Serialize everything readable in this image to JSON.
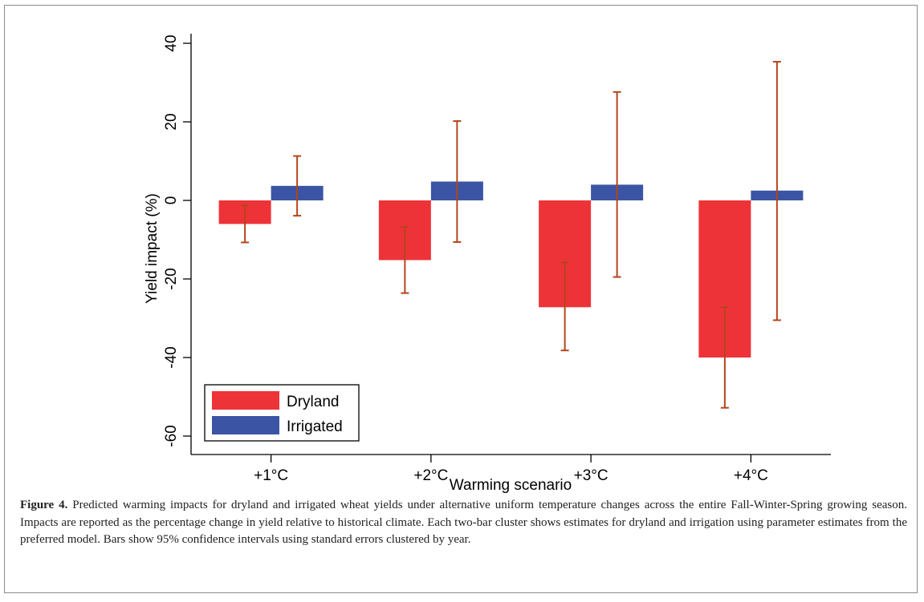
{
  "chart_data": {
    "type": "bar",
    "categories": [
      "+1°C",
      "+2°C",
      "+3°C",
      "+4°C"
    ],
    "series": [
      {
        "name": "Dryland",
        "color": "#ee3338",
        "values": [
          -6.0,
          -15.2,
          -27.2,
          -40.0
        ],
        "ci_low": [
          -10.7,
          -23.6,
          -38.2,
          -52.8
        ],
        "ci_high": [
          -1.3,
          -6.8,
          -15.8,
          -27.2
        ]
      },
      {
        "name": "Irrigated",
        "color": "#3b55a4",
        "values": [
          3.7,
          4.8,
          4.0,
          2.5
        ],
        "ci_low": [
          -3.9,
          -10.6,
          -19.5,
          -30.5
        ],
        "ci_high": [
          11.3,
          20.2,
          27.6,
          35.3
        ]
      }
    ],
    "error_bar_color": "#b5451b",
    "xlabel": "Warming scenario",
    "ylabel": "Yield impact (%)",
    "ylim": [
      -62,
      43
    ],
    "yticks": [
      -60,
      -40,
      -20,
      0,
      20,
      40
    ],
    "ytick_labels": [
      "-60",
      "-40",
      "-20",
      "0",
      "20",
      "40"
    ],
    "grid": false,
    "legend_position": "bottom-left"
  },
  "caption": {
    "label": "Figure 4.",
    "text": "Predicted warming impacts for dryland and irrigated wheat yields under alternative uniform temperature changes across the entire Fall-Winter-Spring growing season. Impacts are reported as the percentage change in yield relative to historical climate. Each two-bar cluster shows estimates for dryland and irrigation using parameter estimates from the preferred model. Bars show 95% confidence intervals using standard errors clustered by year."
  }
}
